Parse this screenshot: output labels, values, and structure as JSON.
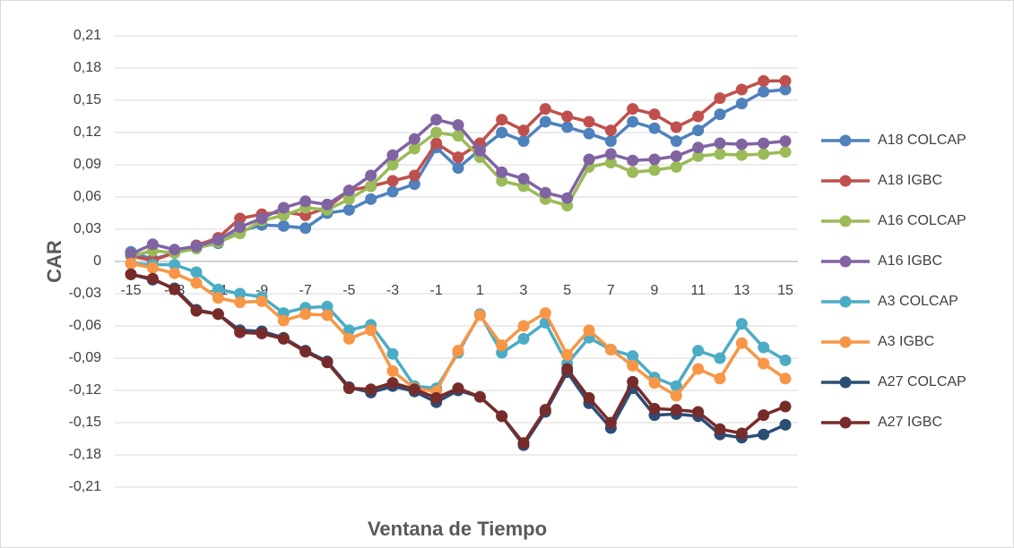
{
  "chart_data": {
    "type": "line",
    "x_label": "Ventana de Tiempo",
    "y_label": "CAR",
    "x": [
      -15,
      -14,
      -13,
      -12,
      -11,
      -10,
      -9,
      -8,
      -7,
      -6,
      -5,
      -4,
      -3,
      -2,
      -1,
      0,
      1,
      2,
      3,
      4,
      5,
      6,
      7,
      8,
      9,
      10,
      11,
      12,
      13,
      14,
      15
    ],
    "xlim": [
      -15,
      15
    ],
    "xticks": [
      -15,
      -13,
      -11,
      -9,
      -7,
      -5,
      -3,
      -1,
      1,
      3,
      5,
      7,
      9,
      11,
      13,
      15
    ],
    "ylim": [
      -0.21,
      0.21
    ],
    "yticks": [
      {
        "value": -0.21,
        "label": "-0,21"
      },
      {
        "value": -0.18,
        "label": "-0,18"
      },
      {
        "value": -0.15,
        "label": "-0,15"
      },
      {
        "value": -0.12,
        "label": "-0,12"
      },
      {
        "value": -0.09,
        "label": "-0,09"
      },
      {
        "value": -0.06,
        "label": "-0,06"
      },
      {
        "value": -0.03,
        "label": "-0,03"
      },
      0,
      {
        "value": 0.03,
        "label": "0,03"
      },
      {
        "value": 0.06,
        "label": "0,06"
      },
      {
        "value": 0.09,
        "label": "0,09"
      },
      {
        "value": 0.12,
        "label": "0,12"
      },
      {
        "value": 0.15,
        "label": "0,15"
      },
      {
        "value": 0.18,
        "label": "0,18"
      },
      {
        "value": 0.21,
        "label": "0,21"
      }
    ],
    "grid": true,
    "legend": "right",
    "series": [
      {
        "name": "A18 COLCAP",
        "color": "#4F81BD",
        "values": [
          0.009,
          0.002,
          0.008,
          0.013,
          0.017,
          0.028,
          0.034,
          0.033,
          0.031,
          0.045,
          0.048,
          0.058,
          0.065,
          0.072,
          0.106,
          0.087,
          0.104,
          0.12,
          0.112,
          0.13,
          0.125,
          0.119,
          0.112,
          0.13,
          0.124,
          0.112,
          0.122,
          0.137,
          0.147,
          0.158,
          0.16
        ]
      },
      {
        "name": "A18 IGBC",
        "color": "#C0504D",
        "values": [
          0.005,
          0.001,
          0.008,
          0.015,
          0.022,
          0.04,
          0.044,
          0.046,
          0.043,
          0.05,
          0.066,
          0.07,
          0.075,
          0.08,
          0.11,
          0.097,
          0.11,
          0.132,
          0.122,
          0.142,
          0.135,
          0.13,
          0.122,
          0.142,
          0.137,
          0.125,
          0.135,
          0.152,
          0.16,
          0.168,
          0.168
        ]
      },
      {
        "name": "A16 COLCAP",
        "color": "#9BBB59",
        "values": [
          0.005,
          0.01,
          0.008,
          0.012,
          0.018,
          0.026,
          0.038,
          0.043,
          0.05,
          0.048,
          0.058,
          0.07,
          0.09,
          0.105,
          0.12,
          0.117,
          0.097,
          0.075,
          0.07,
          0.058,
          0.052,
          0.088,
          0.092,
          0.083,
          0.085,
          0.088,
          0.098,
          0.1,
          0.099,
          0.1,
          0.102
        ]
      },
      {
        "name": "A16 IGBC",
        "color": "#8064A2",
        "values": [
          0.007,
          0.016,
          0.011,
          0.014,
          0.02,
          0.032,
          0.04,
          0.05,
          0.056,
          0.053,
          0.066,
          0.08,
          0.099,
          0.114,
          0.132,
          0.127,
          0.103,
          0.083,
          0.077,
          0.064,
          0.059,
          0.095,
          0.1,
          0.094,
          0.095,
          0.098,
          0.106,
          0.11,
          0.109,
          0.11,
          0.112
        ]
      },
      {
        "name": "A3 COLCAP",
        "color": "#4BACC6",
        "values": [
          -0.002,
          -0.003,
          -0.003,
          -0.01,
          -0.026,
          -0.03,
          -0.033,
          -0.048,
          -0.043,
          -0.042,
          -0.064,
          -0.059,
          -0.086,
          -0.116,
          -0.118,
          -0.085,
          -0.049,
          -0.085,
          -0.072,
          -0.057,
          -0.095,
          -0.071,
          -0.082,
          -0.088,
          -0.108,
          -0.116,
          -0.083,
          -0.09,
          -0.058,
          -0.08,
          -0.092
        ]
      },
      {
        "name": "A3 IGBC",
        "color": "#F79646",
        "values": [
          -0.002,
          -0.006,
          -0.011,
          -0.02,
          -0.034,
          -0.038,
          -0.037,
          -0.055,
          -0.049,
          -0.05,
          -0.072,
          -0.064,
          -0.102,
          -0.118,
          -0.121,
          -0.083,
          -0.05,
          -0.078,
          -0.06,
          -0.048,
          -0.087,
          -0.064,
          -0.082,
          -0.097,
          -0.113,
          -0.125,
          -0.1,
          -0.109,
          -0.076,
          -0.095,
          -0.109
        ]
      },
      {
        "name": "A27 COLCAP",
        "color": "#2C4D75",
        "values": [
          -0.012,
          -0.017,
          -0.025,
          -0.045,
          -0.049,
          -0.064,
          -0.065,
          -0.071,
          -0.083,
          -0.093,
          -0.117,
          -0.122,
          -0.116,
          -0.121,
          -0.131,
          -0.12,
          -0.126,
          -0.144,
          -0.171,
          -0.14,
          -0.103,
          -0.132,
          -0.155,
          -0.118,
          -0.143,
          -0.142,
          -0.144,
          -0.161,
          -0.164,
          -0.161,
          -0.152
        ]
      },
      {
        "name": "A27 IGBC",
        "color": "#772C2A",
        "values": [
          -0.012,
          -0.016,
          -0.026,
          -0.046,
          -0.049,
          -0.066,
          -0.067,
          -0.072,
          -0.084,
          -0.094,
          -0.118,
          -0.119,
          -0.113,
          -0.119,
          -0.127,
          -0.118,
          -0.126,
          -0.144,
          -0.169,
          -0.138,
          -0.1,
          -0.127,
          -0.15,
          -0.112,
          -0.137,
          -0.138,
          -0.14,
          -0.156,
          -0.16,
          -0.143,
          -0.135
        ]
      }
    ]
  }
}
